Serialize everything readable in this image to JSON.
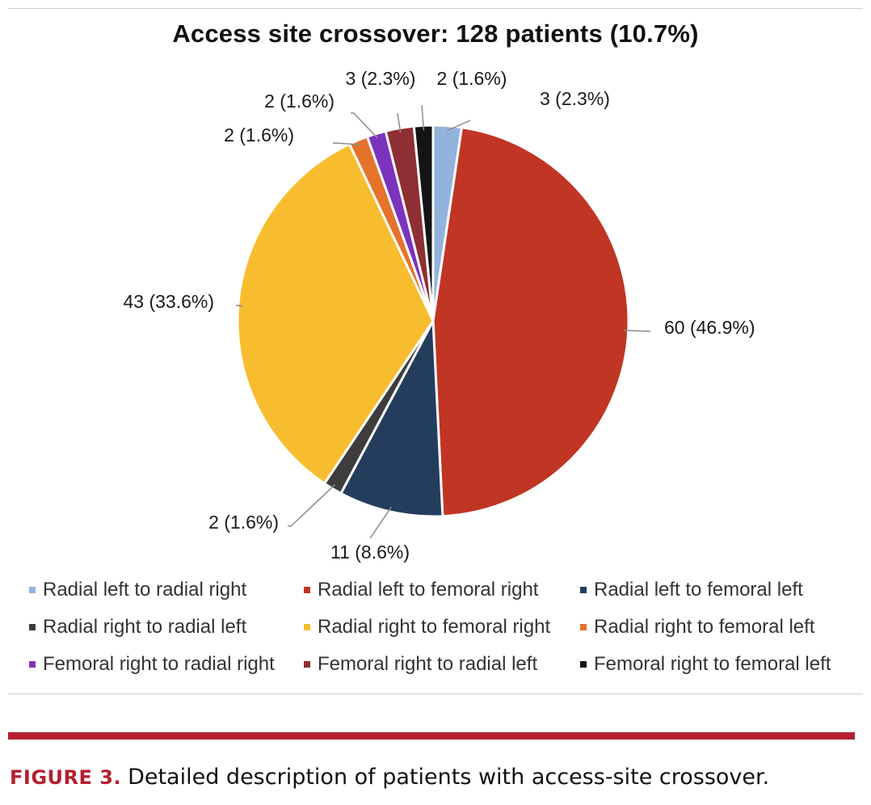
{
  "chart_data": {
    "type": "pie",
    "title": "Access site crossover: 128 patients (10.7%)",
    "slices": [
      {
        "name": "Radial left to radial right",
        "value": 3,
        "label": "3 (2.3%)",
        "color": "#92b3dc"
      },
      {
        "name": "Radial left to femoral right",
        "value": 60,
        "label": "60 (46.9%)",
        "color": "#c13524"
      },
      {
        "name": "Radial left to femoral left",
        "value": 11,
        "label": "11 (8.6%)",
        "color": "#243d5d"
      },
      {
        "name": "Radial right to radial left",
        "value": 2,
        "label": "2 (1.6%)",
        "color": "#3d3d3d"
      },
      {
        "name": "Radial right to femoral right",
        "value": 43,
        "label": "43 (33.6%)",
        "color": "#f8bd2f"
      },
      {
        "name": "Radial right to femoral left",
        "value": 2,
        "label": "2 (1.6%)",
        "color": "#e5732b"
      },
      {
        "name": "Femoral right to radial right",
        "value": 2,
        "label": "2 (1.6%)",
        "color": "#7b33be"
      },
      {
        "name": "Femoral right to radial left",
        "value": 3,
        "label": "3 (2.3%)",
        "color": "#8e2f33"
      },
      {
        "name": "Femoral right to femoral left",
        "value": 2,
        "label": "2 (1.6%)",
        "color": "#141414"
      }
    ],
    "legend_position": "bottom"
  },
  "caption": {
    "label": "FIGURE 3.",
    "text": "Detailed description of patients with access-site crossover."
  }
}
